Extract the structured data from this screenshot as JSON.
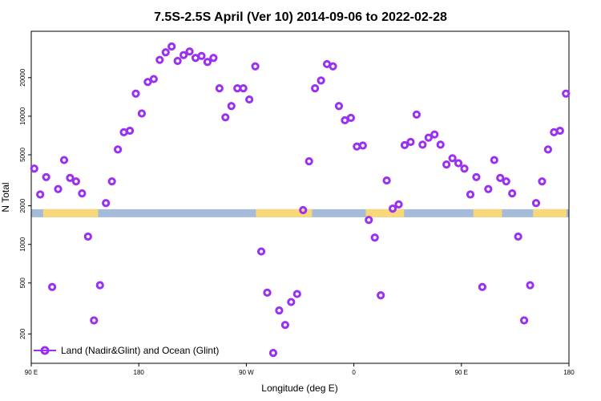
{
  "chart_data": {
    "type": "scatter",
    "title": "7.5S-2.5S April (Ver 10)   2014-09-06 to 2022-02-28",
    "xlabel": "Longitude (deg E)",
    "ylabel": "N Total",
    "x_ticks": [
      {
        "value": 90,
        "label": "90 E"
      },
      {
        "value": 180,
        "label": "180"
      },
      {
        "value": 270,
        "label": "90 W"
      },
      {
        "value": 360,
        "label": "0"
      },
      {
        "value": 450,
        "label": "90 E"
      },
      {
        "value": 540,
        "label": "180"
      }
    ],
    "y_ticks": [
      200,
      500,
      1000,
      2000,
      5000,
      10000,
      20000
    ],
    "xlim": [
      90,
      540
    ],
    "ylim": [
      118,
      46000
    ],
    "y_scale": "log",
    "grid": false,
    "legend_position": "bottom-left",
    "series": [
      {
        "name": "Land (Nadir&Glint) and Ocean (Glint)",
        "color": "#9b30f0",
        "x": [
          92.5,
          97.5,
          102.5,
          107.5,
          112.5,
          117.5,
          122.5,
          127.5,
          132.5,
          137.5,
          142.5,
          147.5,
          152.5,
          157.5,
          162.5,
          167.5,
          172.5,
          177.5,
          182.5,
          187.5,
          192.5,
          197.5,
          202.5,
          207.5,
          212.5,
          217.5,
          222.5,
          227.5,
          232.5,
          237.5,
          242.5,
          247.5,
          252.5,
          257.5,
          262.5,
          267.5,
          272.5,
          277.5,
          282.5,
          287.5,
          292.5,
          297.5,
          302.5,
          307.5,
          312.5,
          317.5,
          322.5,
          327.5,
          332.5,
          337.5,
          342.5,
          347.5,
          352.5,
          357.5,
          362.5,
          367.5,
          372.5,
          377.5,
          382.5,
          387.5,
          392.5,
          397.5,
          402.5,
          407.5,
          412.5,
          417.5,
          422.5,
          427.5,
          432.5,
          437.5,
          442.5,
          447.5,
          452.5,
          457.5,
          462.5,
          467.5,
          472.5,
          477.5,
          482.5,
          487.5,
          492.5,
          497.5,
          502.5,
          507.5,
          512.5,
          517.5,
          522.5,
          527.5,
          532.5,
          537.5
        ],
        "y": [
          3900,
          2450,
          3350,
          465,
          2700,
          4550,
          3300,
          3100,
          2500,
          1150,
          255,
          480,
          2100,
          3100,
          5500,
          7500,
          7700,
          15000,
          10500,
          18500,
          19500,
          27500,
          31500,
          35000,
          27000,
          30000,
          32000,
          28500,
          29500,
          26500,
          28500,
          16500,
          9800,
          12000,
          16500,
          16500,
          13500,
          24500,
          880,
          420,
          142,
          305,
          235,
          355,
          410,
          1850,
          4450,
          16500,
          19000,
          25500,
          24500,
          12000,
          9300,
          9700,
          5800,
          5900,
          1550,
          1130,
          400,
          3150,
          1900,
          2050,
          5950,
          6300,
          10300,
          6000,
          6800,
          7200,
          6000,
          4200,
          4700,
          4300,
          3900,
          2450,
          3350,
          465,
          2700,
          4550,
          3300,
          3100,
          2500,
          1150,
          255,
          480,
          2100,
          3100,
          5500,
          7500,
          7700,
          15000
        ]
      }
    ],
    "band": {
      "value": 1750,
      "base_color": "#a4bbd9",
      "land_color": "#f8d879",
      "land_segments": [
        [
          100,
          146
        ],
        [
          278,
          325
        ],
        [
          370,
          402
        ],
        [
          460,
          484
        ],
        [
          510,
          538
        ]
      ]
    }
  }
}
